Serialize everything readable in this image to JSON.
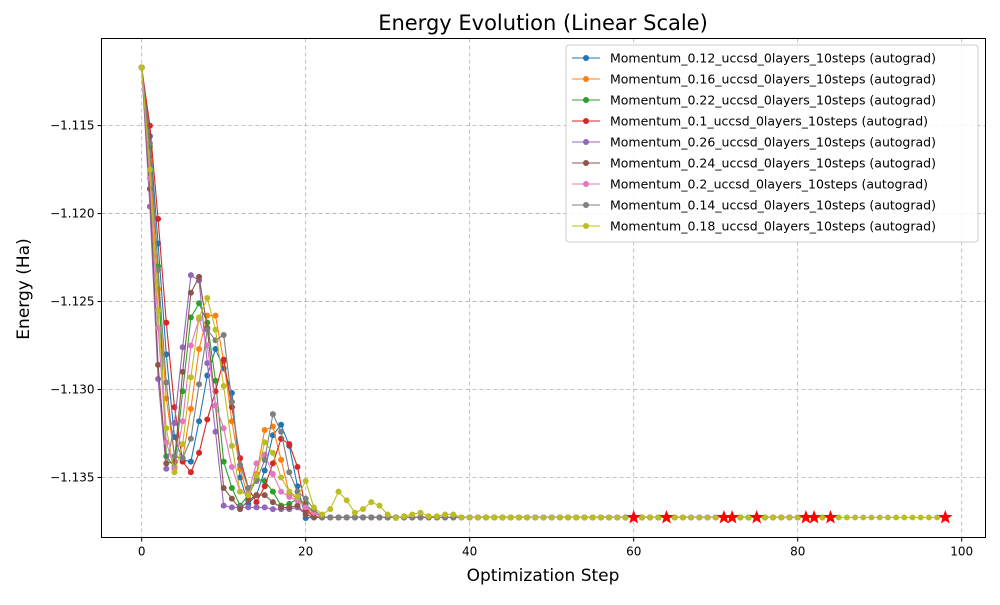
{
  "chart_data": {
    "type": "line",
    "title": "Energy Evolution (Linear Scale)",
    "xlabel": "Optimization Step",
    "ylabel": "Energy (Ha)",
    "xlim": [
      -4.9,
      102.9
    ],
    "ylim": [
      -1.13841,
      -1.11005
    ],
    "xticks": [
      0,
      20,
      40,
      60,
      80,
      100
    ],
    "yticks": [
      -1.115,
      -1.12,
      -1.125,
      -1.13,
      -1.135
    ],
    "ytick_labels": [
      "−1.115",
      "−1.120",
      "−1.125",
      "−1.130",
      "−1.135"
    ],
    "grid": true,
    "legend_position": "top-right",
    "marker": "circle",
    "final_marker": "red-star",
    "final_marker_color": "#ff0000",
    "series": [
      {
        "name": "Momentum_0.12_uccsd_0layers_10steps (autograd)",
        "color": "#1f77b4",
        "end_step": 81,
        "values": [
          -1.1117,
          -1.1156,
          -1.1217,
          -1.128,
          -1.1327,
          -1.134,
          -1.1341,
          -1.1318,
          -1.1292,
          -1.1277,
          -1.1288,
          -1.1302,
          -1.135,
          -1.1365,
          -1.136,
          -1.1346,
          -1.1326,
          -1.132,
          -1.1332,
          -1.1355,
          -1.1373
        ]
      },
      {
        "name": "Momentum_0.16_uccsd_0layers_10steps (autograd)",
        "color": "#ff7f0e",
        "end_step": 60,
        "values": [
          -1.1117,
          -1.117,
          -1.1243,
          -1.1305,
          -1.1338,
          -1.1339,
          -1.1311,
          -1.1277,
          -1.1258,
          -1.1258,
          -1.1284,
          -1.1318,
          -1.1345,
          -1.1362,
          -1.1348,
          -1.1323,
          -1.1321,
          -1.134,
          -1.1359,
          -1.1362,
          -1.1367,
          -1.1372
        ]
      },
      {
        "name": "Momentum_0.22_uccsd_0layers_10steps (autograd)",
        "color": "#2ca02c",
        "end_step": 75,
        "values": [
          -1.1117,
          -1.1162,
          -1.123,
          -1.1338,
          -1.1344,
          -1.1301,
          -1.1259,
          -1.1251,
          -1.1262,
          -1.1295,
          -1.1341,
          -1.1356,
          -1.1366,
          -1.136,
          -1.1351,
          -1.1352,
          -1.1358,
          -1.1366,
          -1.1365,
          -1.1362,
          -1.1365,
          -1.137
        ]
      },
      {
        "name": "Momentum_0.1_uccsd_0layers_10steps (autograd)",
        "color": "#d62728",
        "end_step": 84,
        "values": [
          -1.1117,
          -1.115,
          -1.1203,
          -1.1262,
          -1.131,
          -1.1341,
          -1.1347,
          -1.1336,
          -1.1317,
          -1.1301,
          -1.1283,
          -1.131,
          -1.1339,
          -1.1356,
          -1.1364,
          -1.1355,
          -1.1342,
          -1.1328,
          -1.1331,
          -1.1344,
          -1.1368
        ]
      },
      {
        "name": "Momentum_0.26_uccsd_0layers_10steps (autograd)",
        "color": "#9467bd",
        "end_step": 71,
        "values": [
          -1.1117,
          -1.1196,
          -1.1294,
          -1.1345,
          -1.1319,
          -1.1276,
          -1.1235,
          -1.1238,
          -1.1285,
          -1.1324,
          -1.1366,
          -1.1367,
          -1.1367,
          -1.1367,
          -1.1367,
          -1.1367,
          -1.1368,
          -1.1368,
          -1.1368,
          -1.1367,
          -1.1371
        ]
      },
      {
        "name": "Momentum_0.24_uccsd_0layers_10steps (autograd)",
        "color": "#8c564b",
        "end_step": 82,
        "values": [
          -1.1117,
          -1.1186,
          -1.1286,
          -1.1342,
          -1.1341,
          -1.129,
          -1.1245,
          -1.1236,
          -1.1265,
          -1.1309,
          -1.1356,
          -1.1362,
          -1.1368,
          -1.1363,
          -1.136,
          -1.136,
          -1.1364,
          -1.1367,
          -1.1367,
          -1.1366,
          -1.1371
        ]
      },
      {
        "name": "Momentum_0.2_uccsd_0layers_10steps (autograd)",
        "color": "#e377c2",
        "end_step": 72,
        "values": [
          -1.1117,
          -1.118,
          -1.1265,
          -1.133,
          -1.1345,
          -1.1318,
          -1.1275,
          -1.126,
          -1.1275,
          -1.1309,
          -1.1322,
          -1.1344,
          -1.1358,
          -1.1359,
          -1.1342,
          -1.1337,
          -1.1348,
          -1.1358,
          -1.1361,
          -1.1363,
          -1.1367,
          -1.137
        ]
      },
      {
        "name": "Momentum_0.14_uccsd_0layers_10steps (autograd)",
        "color": "#7f7f7f",
        "end_step": 64,
        "values": [
          -1.1117,
          -1.116,
          -1.1232,
          -1.1296,
          -1.1338,
          -1.1339,
          -1.1328,
          -1.1297,
          -1.1266,
          -1.1272,
          -1.1269,
          -1.1307,
          -1.1343,
          -1.1356,
          -1.1352,
          -1.134,
          -1.1314,
          -1.1324,
          -1.1347,
          -1.1358,
          -1.1362,
          -1.1368
        ]
      },
      {
        "name": "Momentum_0.18_uccsd_0layers_10steps (autograd)",
        "color": "#bcbd22",
        "end_step": 98,
        "values": [
          -1.1117,
          -1.1175,
          -1.1255,
          -1.1322,
          -1.1347,
          -1.1331,
          -1.1293,
          -1.1259,
          -1.1248,
          -1.1266,
          -1.1298,
          -1.1332,
          -1.1358,
          -1.136,
          -1.1349,
          -1.133,
          -1.1336,
          -1.135,
          -1.1358,
          -1.1361,
          -1.1352,
          -1.1367,
          -1.1371,
          -1.1368,
          -1.1358,
          -1.1363,
          -1.137,
          -1.1368,
          -1.1364,
          -1.1366,
          -1.1371,
          -1.1373,
          -1.1372,
          -1.1371,
          -1.137,
          -1.1372,
          -1.1372,
          -1.1371,
          -1.1371
        ]
      }
    ]
  }
}
